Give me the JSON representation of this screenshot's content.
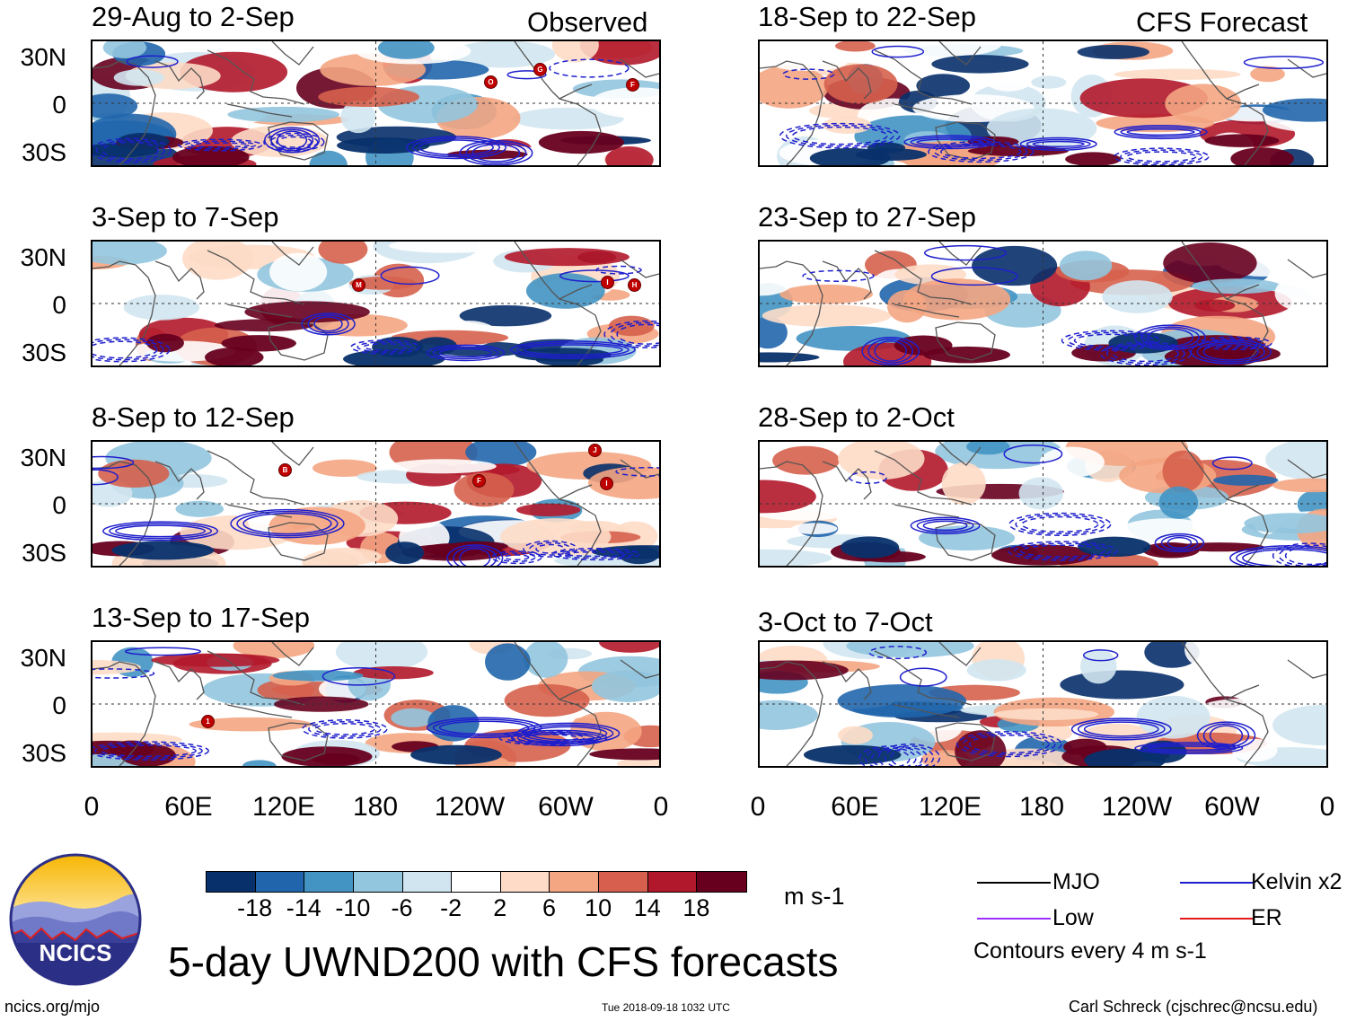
{
  "figure": {
    "title": "5-day UWND200 with CFS forecasts",
    "left_column_title": "Observed",
    "right_column_title": "CFS Forecast",
    "logo_text": "NCICS",
    "footer_left": "ncics.org/mjo",
    "footer_center": "Tue 2018-09-18 1032 UTC",
    "footer_right": "Carl Schreck (cjschrec@ncsu.edu)"
  },
  "panels": {
    "observed": [
      {
        "period": "29-Aug to 2-Sep"
      },
      {
        "period": "3-Sep to 7-Sep"
      },
      {
        "period": "8-Sep to 12-Sep"
      },
      {
        "period": "13-Sep to 17-Sep"
      }
    ],
    "forecast": [
      {
        "period": "18-Sep to 22-Sep"
      },
      {
        "period": "23-Sep to 27-Sep"
      },
      {
        "period": "28-Sep to 2-Oct"
      },
      {
        "period": "3-Oct to 7-Oct"
      }
    ]
  },
  "axes": {
    "lat_labels": [
      "30N",
      "0",
      "30S"
    ],
    "lon_labels": [
      "0",
      "60E",
      "120E",
      "180",
      "120W",
      "60W",
      "0"
    ]
  },
  "colorbar": {
    "units": "m s-1",
    "tick_labels": [
      "-18",
      "-14",
      "-10",
      "-6",
      "-2",
      "2",
      "6",
      "10",
      "14",
      "18"
    ],
    "colors": [
      "#08306b",
      "#2166ac",
      "#4393c3",
      "#92c5de",
      "#d1e5f0",
      "#ffffff",
      "#fddbc7",
      "#f4a582",
      "#d6604d",
      "#b2182b",
      "#67001f"
    ]
  },
  "legend": {
    "items": [
      {
        "label": "MJO",
        "color": "#000000"
      },
      {
        "label": "Kelvin x2",
        "color": "#1f1fcc"
      },
      {
        "label": "Low",
        "color": "#9b30ff"
      },
      {
        "label": "ER",
        "color": "#e31a1c"
      }
    ],
    "note": "Contours every 4 m s-1"
  },
  "storm_markers": {
    "observed_1": [
      "O",
      "G",
      "F"
    ],
    "observed_2": [
      "M",
      "I",
      "H"
    ],
    "observed_3": [
      "B",
      "F",
      "J",
      "I"
    ],
    "observed_4": [
      "1"
    ]
  }
}
